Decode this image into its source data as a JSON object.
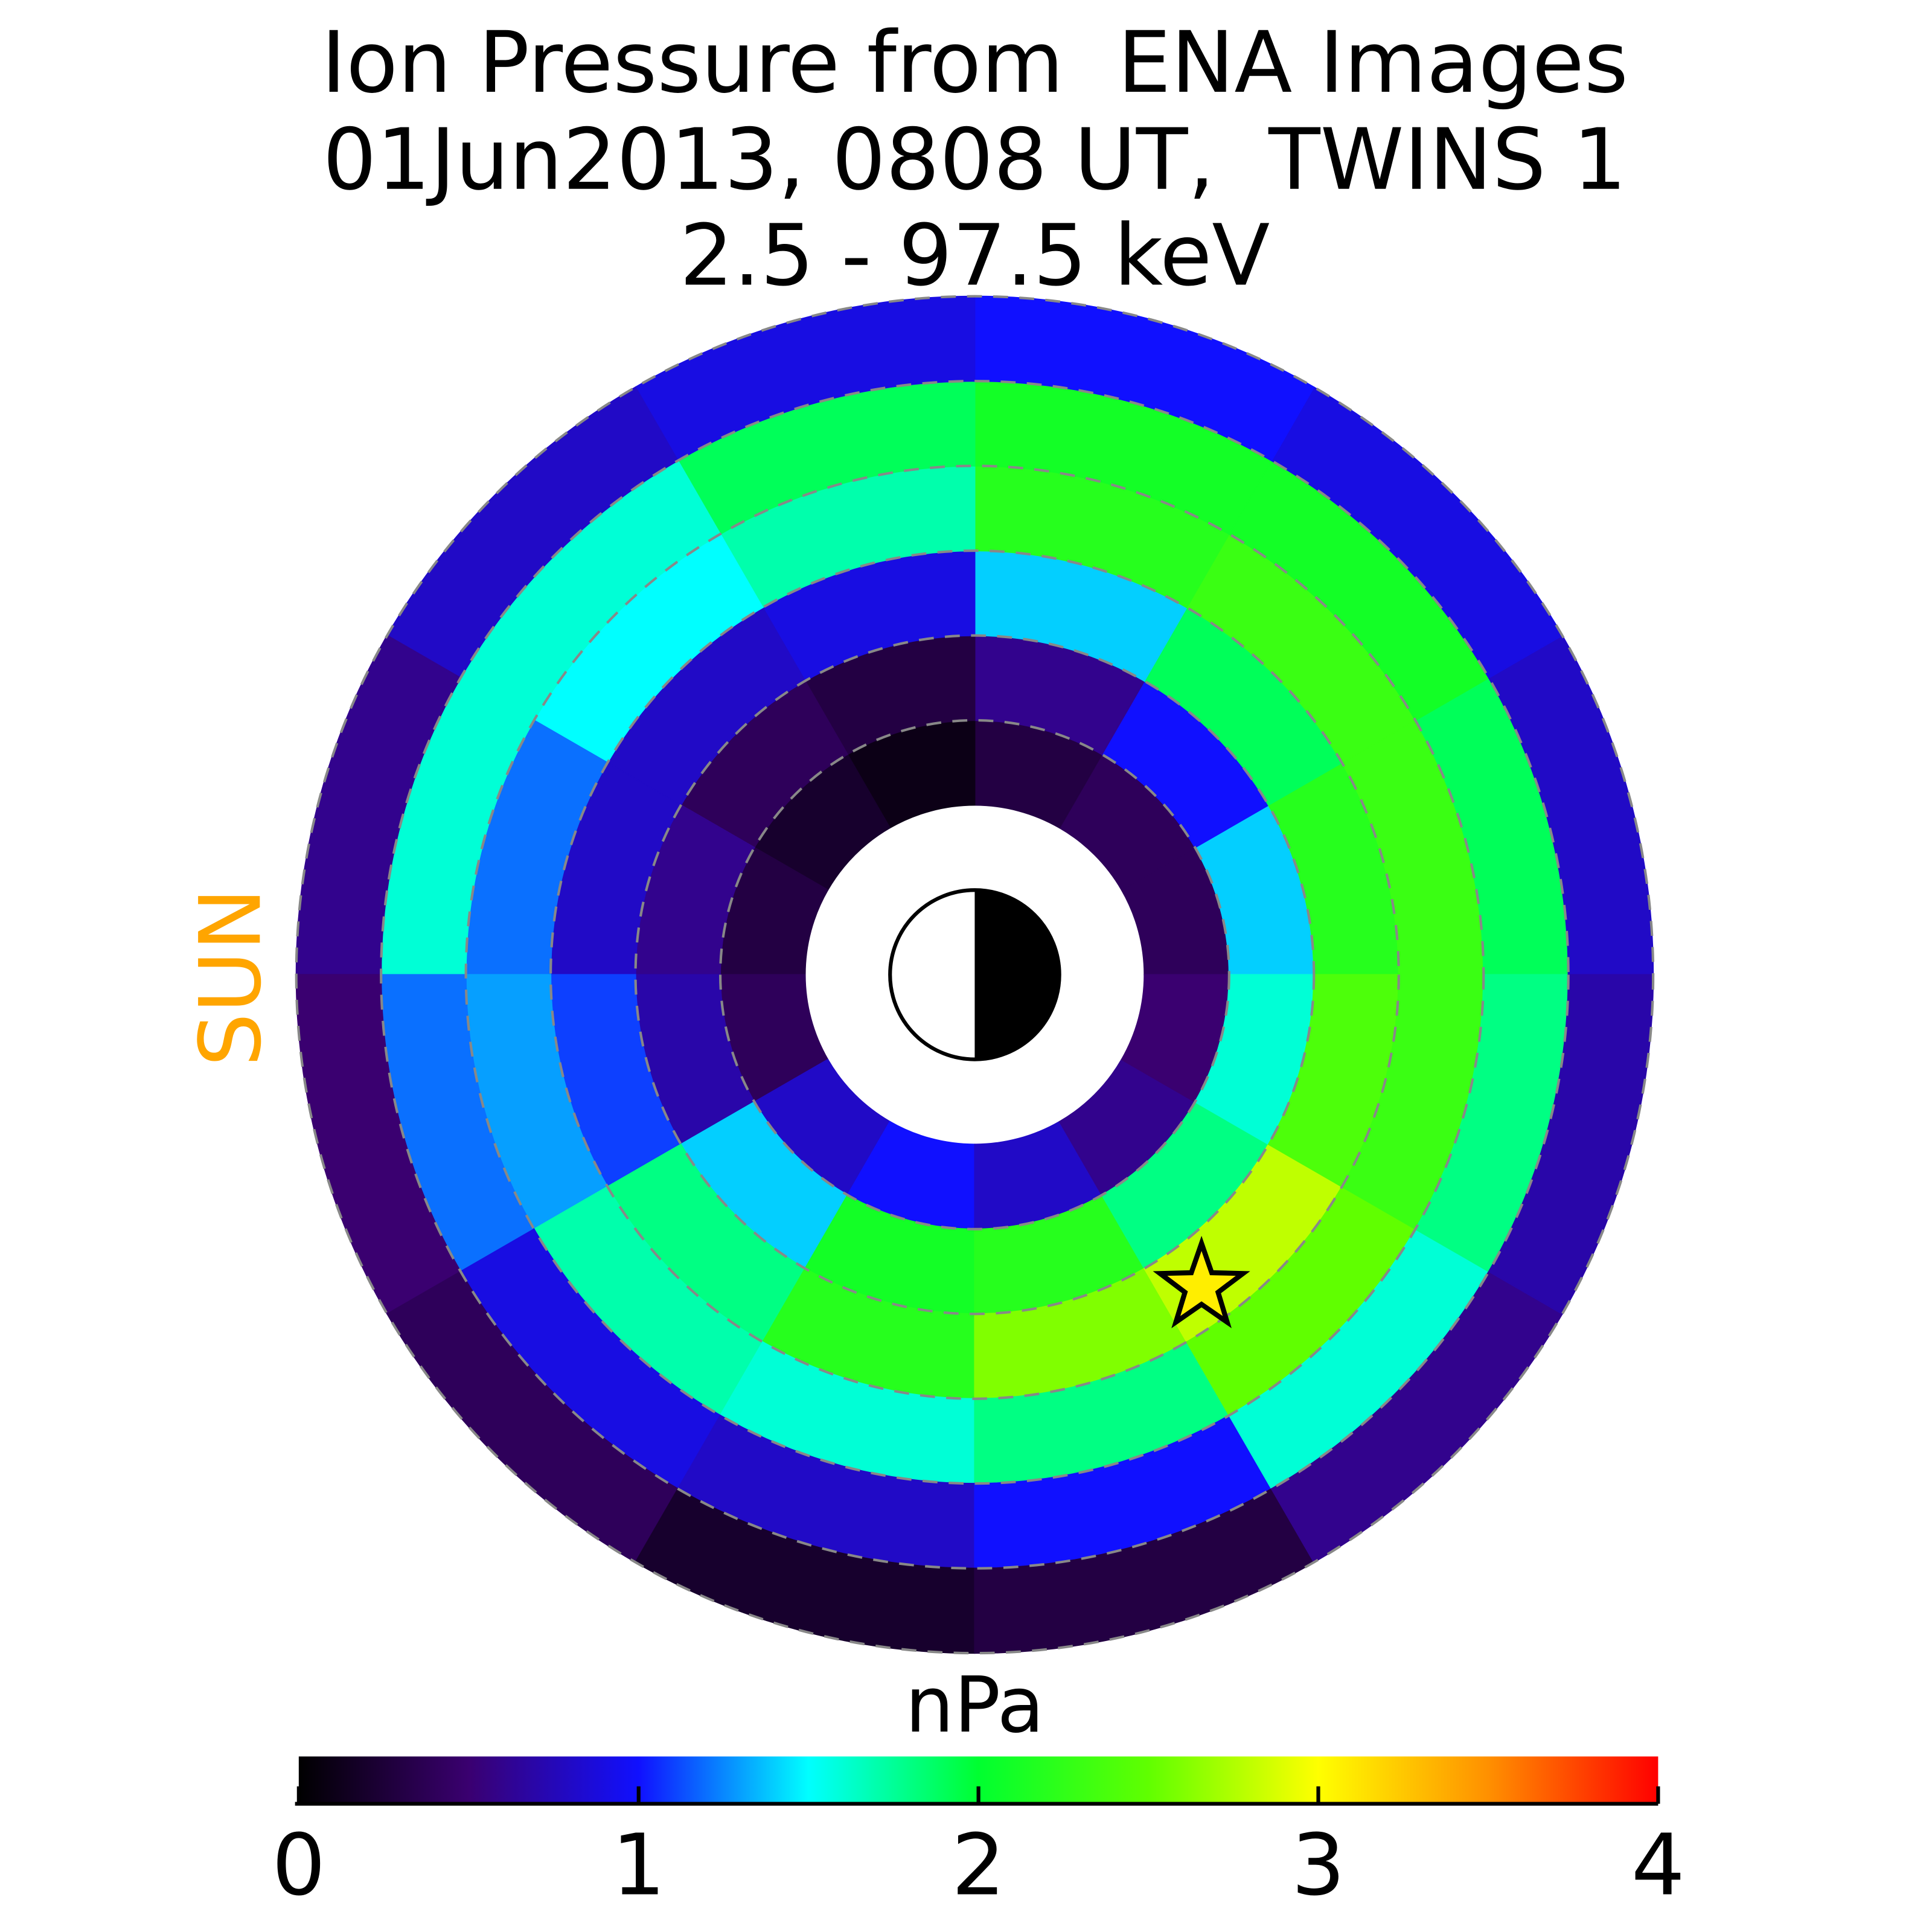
{
  "chart_data": {
    "type": "polar_heatmap",
    "title": [
      "Ion Pressure from  ENA Images",
      "01Jun2013, 0808 UT,  TWINS 1",
      "2.5 - 97.5 keV"
    ],
    "sun_label": "SUN",
    "colorbar_label": "nPa",
    "r_edges": [
      2,
      3,
      4,
      5,
      6,
      7,
      8
    ],
    "mlt_edges": [
      0,
      2,
      4,
      6,
      8,
      10,
      12,
      14,
      16,
      18,
      20,
      22,
      24
    ],
    "values": [
      [
        0.4,
        0.4,
        0.3,
        0.1,
        0.2,
        0.3,
        0.4,
        0.8,
        1.0,
        0.8,
        0.6,
        0.5
      ],
      [
        1.4,
        1.0,
        0.6,
        0.3,
        0.4,
        0.6,
        0.7,
        1.4,
        2.1,
        2.2,
        1.8,
        1.6
      ],
      [
        2.2,
        1.9,
        1.4,
        0.9,
        0.8,
        0.8,
        1.1,
        1.8,
        2.2,
        2.6,
        2.8,
        2.4
      ],
      [
        2.3,
        2.3,
        2.2,
        1.7,
        1.5,
        1.2,
        1.3,
        1.7,
        1.6,
        1.8,
        2.5,
        2.3
      ],
      [
        1.9,
        2.1,
        2.1,
        1.9,
        1.6,
        1.6,
        1.2,
        0.9,
        0.8,
        1.0,
        1.6,
        1.8
      ],
      [
        0.8,
        0.9,
        1.0,
        0.9,
        0.8,
        0.6,
        0.5,
        0.4,
        0.2,
        0.3,
        0.6,
        0.7
      ]
    ],
    "rlim": [
      0,
      8
    ],
    "rticks": [
      3,
      4,
      5,
      6,
      7,
      8
    ],
    "marker": {
      "mlt": 20.4,
      "r": 4.55
    },
    "clim": [
      0,
      4
    ],
    "cticks": [
      0,
      1,
      2,
      3,
      4
    ],
    "colormap": [
      "#000000",
      "#3a0070",
      "#1010ff",
      "#00ffff",
      "#00ff30",
      "#60ff00",
      "#ffff00",
      "#ff9000",
      "#ff0000"
    ]
  }
}
